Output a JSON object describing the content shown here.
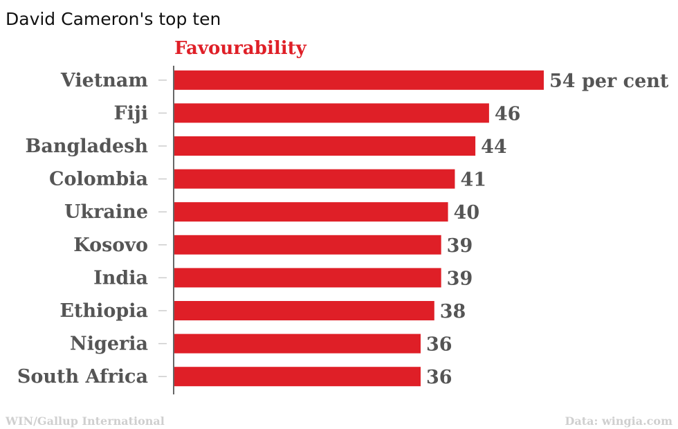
{
  "chart_data": {
    "type": "bar",
    "orientation": "horizontal",
    "title": "David Cameron's top ten",
    "series": [
      {
        "name": "Favourability",
        "values": [
          54,
          46,
          44,
          41,
          40,
          39,
          39,
          38,
          36,
          36
        ]
      }
    ],
    "categories": [
      "Vietnam",
      "Fiji",
      "Bangladesh",
      "Colombia",
      "Ukraine",
      "Kosovo",
      "India",
      "Ethiopia",
      "Nigeria",
      "South Africa"
    ],
    "value_labels": [
      "54 per cent",
      "46",
      "44",
      "41",
      "40",
      "39",
      "39",
      "38",
      "36",
      "36"
    ],
    "xlim": [
      0,
      54
    ],
    "grid": false,
    "source_left": "WIN/Gallup International",
    "source_right": "Data: wingia.com"
  },
  "colors": {
    "bar": "#df1f27",
    "series_label": "#df1f27",
    "axis": "#333333",
    "tick": "#cccccc"
  }
}
